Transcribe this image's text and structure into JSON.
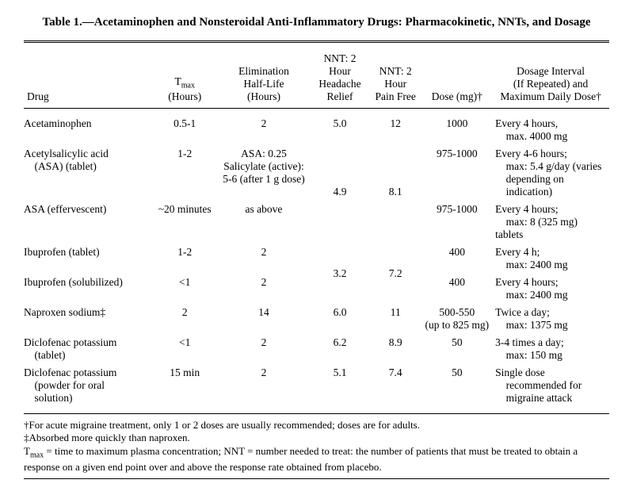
{
  "title": "Table 1.—Acetaminophen and Nonsteroidal Anti-Inflammatory Drugs: Pharmacokinetic, NNTs, and Dosage",
  "columns": {
    "c0": "Drug",
    "c1_a": "T",
    "c1_b": "max",
    "c1_c": "(Hours)",
    "c2_a": "Elimination",
    "c2_b": "Half-Life",
    "c2_c": "(Hours)",
    "c3_a": "NNT: 2",
    "c3_b": "Hour",
    "c3_c": "Headache",
    "c3_d": "Relief",
    "c4_a": "NNT: 2",
    "c4_b": "Hour",
    "c4_c": "Pain Free",
    "c5": "Dose (mg)†",
    "c6_a": "Dosage Interval",
    "c6_b": "(If Repeated) and",
    "c6_c": "Maximum Daily Dose†"
  },
  "rows": {
    "r0": {
      "drug_a": "Acetaminophen",
      "tmax": "0.5-1",
      "halflife": "2",
      "nnt_relief": "5.0",
      "nnt_free": "12",
      "dose": "1000",
      "dosage_a": "Every 4 hours,",
      "dosage_b": " max. 4000 mg"
    },
    "r1": {
      "drug_a": "Acetylsalicylic acid",
      "drug_b": " (ASA) (tablet)",
      "tmax": "1-2",
      "hl_a": "ASA: 0.25",
      "hl_b": "Salicylate (active):",
      "hl_c": "5-6 (after 1 g dose)",
      "nnt_relief": "4.9",
      "nnt_free": "8.1",
      "dose": "975-1000",
      "dosage_a": "Every 4-6 hours;",
      "dosage_b": " max: 5.4 g/day (varies",
      "dosage_c": " depending on",
      "dosage_d": " indication)"
    },
    "r2": {
      "drug_a": "ASA (effervescent)",
      "tmax": "~20 minutes",
      "halflife": "as above",
      "dose": "975-1000",
      "dosage_a": "Every 4 hours;",
      "dosage_b": " max: 8 (325 mg) tablets"
    },
    "r3": {
      "drug_a": "Ibuprofen (tablet)",
      "tmax": "1-2",
      "halflife": "2",
      "nnt_relief": "3.2",
      "nnt_free": "7.2",
      "dose": "400",
      "dosage_a": "Every 4 h;",
      "dosage_b": " max: 2400 mg"
    },
    "r4": {
      "drug_a": "Ibuprofen (solubilized)",
      "tmax": "<1",
      "halflife": "2",
      "dose": "400",
      "dosage_a": "Every 4 hours;",
      "dosage_b": " max: 2400 mg"
    },
    "r5": {
      "drug_a": "Naproxen sodium‡",
      "tmax": "2",
      "halflife": "14",
      "nnt_relief": "6.0",
      "nnt_free": "11",
      "dose_a": "500-550",
      "dose_b": "(up to 825 mg)",
      "dosage_a": "Twice a day;",
      "dosage_b": " max: 1375 mg"
    },
    "r6": {
      "drug_a": "Diclofenac potassium",
      "drug_b": " (tablet)",
      "tmax": "<1",
      "halflife": "2",
      "nnt_relief": "6.2",
      "nnt_free": "8.9",
      "dose": "50",
      "dosage_a": "3-4 times a day;",
      "dosage_b": " max: 150 mg"
    },
    "r7": {
      "drug_a": "Diclofenac potassium",
      "drug_b": " (powder for oral",
      "drug_c": " solution)",
      "tmax": "15 min",
      "halflife": "2",
      "nnt_relief": "5.1",
      "nnt_free": "7.4",
      "dose": "50",
      "dosage_a": "Single dose",
      "dosage_b": " recommended for",
      "dosage_c": " migraine attack"
    }
  },
  "footnotes": {
    "f1": "†For acute migraine treatment, only 1 or 2 doses are usually recommended; doses are for adults.",
    "f2": "‡Absorbed more quickly than naproxen.",
    "f3_a": "T",
    "f3_b": "max",
    "f3_c": " = time to maximum plasma concentration; NNT = number needed to treat: the number of patients that must be treated to obtain a response on a given end point over and above the response rate obtained from placebo."
  },
  "col_widths": {
    "c0": "22%",
    "c1": "11%",
    "c2": "16%",
    "c3": "10%",
    "c4": "9%",
    "c5": "12%",
    "c6": "20%"
  }
}
